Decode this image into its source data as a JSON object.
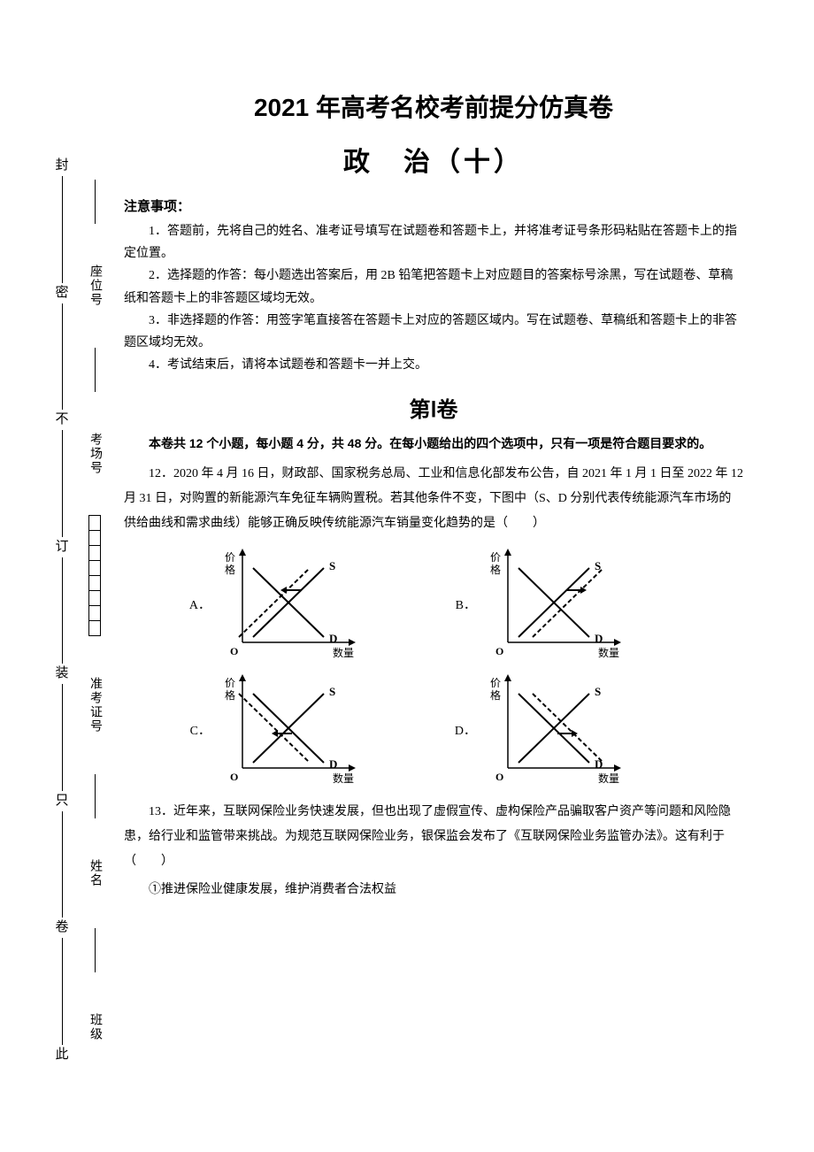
{
  "colors": {
    "text": "#000000",
    "bg": "#ffffff",
    "line": "#000000"
  },
  "binding": {
    "chars": [
      "此",
      "卷",
      "只",
      "装",
      "订",
      "不",
      "密",
      "封"
    ]
  },
  "form_fields": {
    "class": "班级",
    "name": "姓名",
    "exam_id": "准考证号",
    "room": "考场号",
    "seat": "座位号"
  },
  "header": {
    "main_title": "2021 年高考名校考前提分仿真卷",
    "sub_title": "政　治（十）"
  },
  "notice": {
    "heading": "注意事项：",
    "items": [
      "1．答题前，先将自己的姓名、准考证号填写在试题卷和答题卡上，并将准考证号条形码粘贴在答题卡上的指定位置。",
      "2．选择题的作答：每小题选出答案后，用 2B 铅笔把答题卡上对应题目的答案标号涂黑，写在试题卷、草稿纸和答题卡上的非答题区域均无效。",
      "3．非选择题的作答：用签字笔直接答在答题卡上对应的答题区域内。写在试题卷、草稿纸和答题卡上的非答题区域均无效。",
      "4．考试结束后，请将本试题卷和答题卡一并上交。"
    ]
  },
  "section1": {
    "heading": "第Ⅰ卷",
    "desc": "本卷共 12 个小题，每小题 4 分，共 48 分。在每小题给出的四个选项中，只有一项是符合题目要求的。"
  },
  "q12": {
    "text": "12．2020 年 4 月 16 日，财政部、国家税务总局、工业和信息化部发布公告，自 2021 年 1 月 1 日至 2022 年 12 月 31 日，对购置的新能源汽车免征车辆购置税。若其他条件不变，下图中（S、D 分别代表传统能源汽车市场的供给曲线和需求曲线）能够正确反映传统能源汽车销量变化趋势的是（　　）",
    "options": {
      "A": "A．",
      "B": "B．",
      "C": "C．",
      "D": "D．"
    },
    "chart": {
      "width": 160,
      "height": 130,
      "axis_y_label": "价格",
      "axis_x_label": "数量",
      "s_label": "S",
      "d_label": "D",
      "origin_label": "O",
      "axis_color": "#000000",
      "solid_width": 2,
      "dash_pattern": "5,3",
      "dash_width": 2,
      "arrow_len": 18,
      "panels": {
        "A": {
          "shift_curve": "S",
          "direction": "left"
        },
        "B": {
          "shift_curve": "S",
          "direction": "right"
        },
        "C": {
          "shift_curve": "D",
          "direction": "left"
        },
        "D": {
          "shift_curve": "D",
          "direction": "right"
        }
      }
    }
  },
  "q13": {
    "text": "13．近年来，互联网保险业务快速发展，但也出现了虚假宣传、虚构保险产品骗取客户资产等问题和风险隐患，给行业和监管带来挑战。为规范互联网保险业务，银保监会发布了《互联网保险业务监管办法》。这有利于（　　）",
    "sub1": "①推进保险业健康发展，维护消费者合法权益"
  }
}
